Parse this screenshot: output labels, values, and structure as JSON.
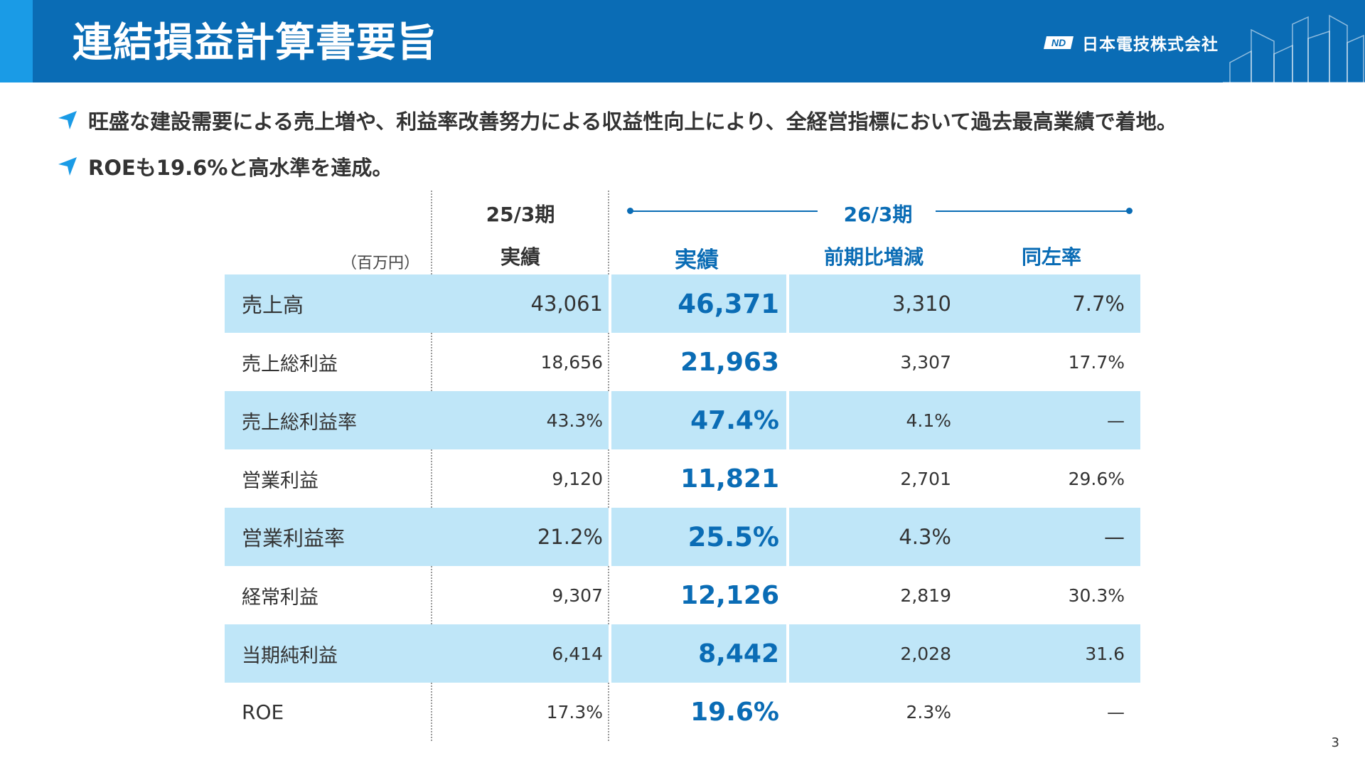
{
  "header": {
    "title": "連結損益計算書要旨",
    "company_name": "日本電技株式会社",
    "logo_text": "ND"
  },
  "bullets": [
    "旺盛な建設需要による売上増や、利益率改善努力による収益性向上により、全経営指標において過去最高業績で着地。",
    "ROEも19.6%と高水準を達成。"
  ],
  "table": {
    "unit": "（百万円）",
    "period_prev": "25/3期",
    "period_cur": "26/3期",
    "col_prev_actual": "実績",
    "col_cur_actual": "実績",
    "col_diff": "前期比増減",
    "col_rate": "同左率",
    "rows": [
      {
        "label": "売上高",
        "prev": "43,061",
        "actual": "46,371",
        "diff": "3,310",
        "rate": "7.7%"
      },
      {
        "label": "売上総利益",
        "prev": "18,656",
        "actual": "21,963",
        "diff": "3,307",
        "rate": "17.7%"
      },
      {
        "label": "売上総利益率",
        "prev": "43.3%",
        "actual": "47.4%",
        "diff": "4.1%",
        "rate": "—"
      },
      {
        "label": "営業利益",
        "prev": "9,120",
        "actual": "11,821",
        "diff": "2,701",
        "rate": "29.6%"
      },
      {
        "label": "営業利益率",
        "prev": "21.2%",
        "actual": "25.5%",
        "diff": "4.3%",
        "rate": "—"
      },
      {
        "label": "経常利益",
        "prev": "9,307",
        "actual": "12,126",
        "diff": "2,819",
        "rate": "30.3%"
      },
      {
        "label": "当期純利益",
        "prev": "6,414",
        "actual": "8,442",
        "diff": "2,028",
        "rate": "31.6"
      },
      {
        "label": "ROE",
        "prev": "17.3%",
        "actual": "19.6%",
        "diff": "2.3%",
        "rate": "—"
      }
    ]
  },
  "page_number": "3",
  "colors": {
    "header_blue": "#0a6cb5",
    "header_accent": "#1a9be6",
    "row_shade": "#bfe6f8",
    "bullet_icon": "#1a9be6"
  }
}
